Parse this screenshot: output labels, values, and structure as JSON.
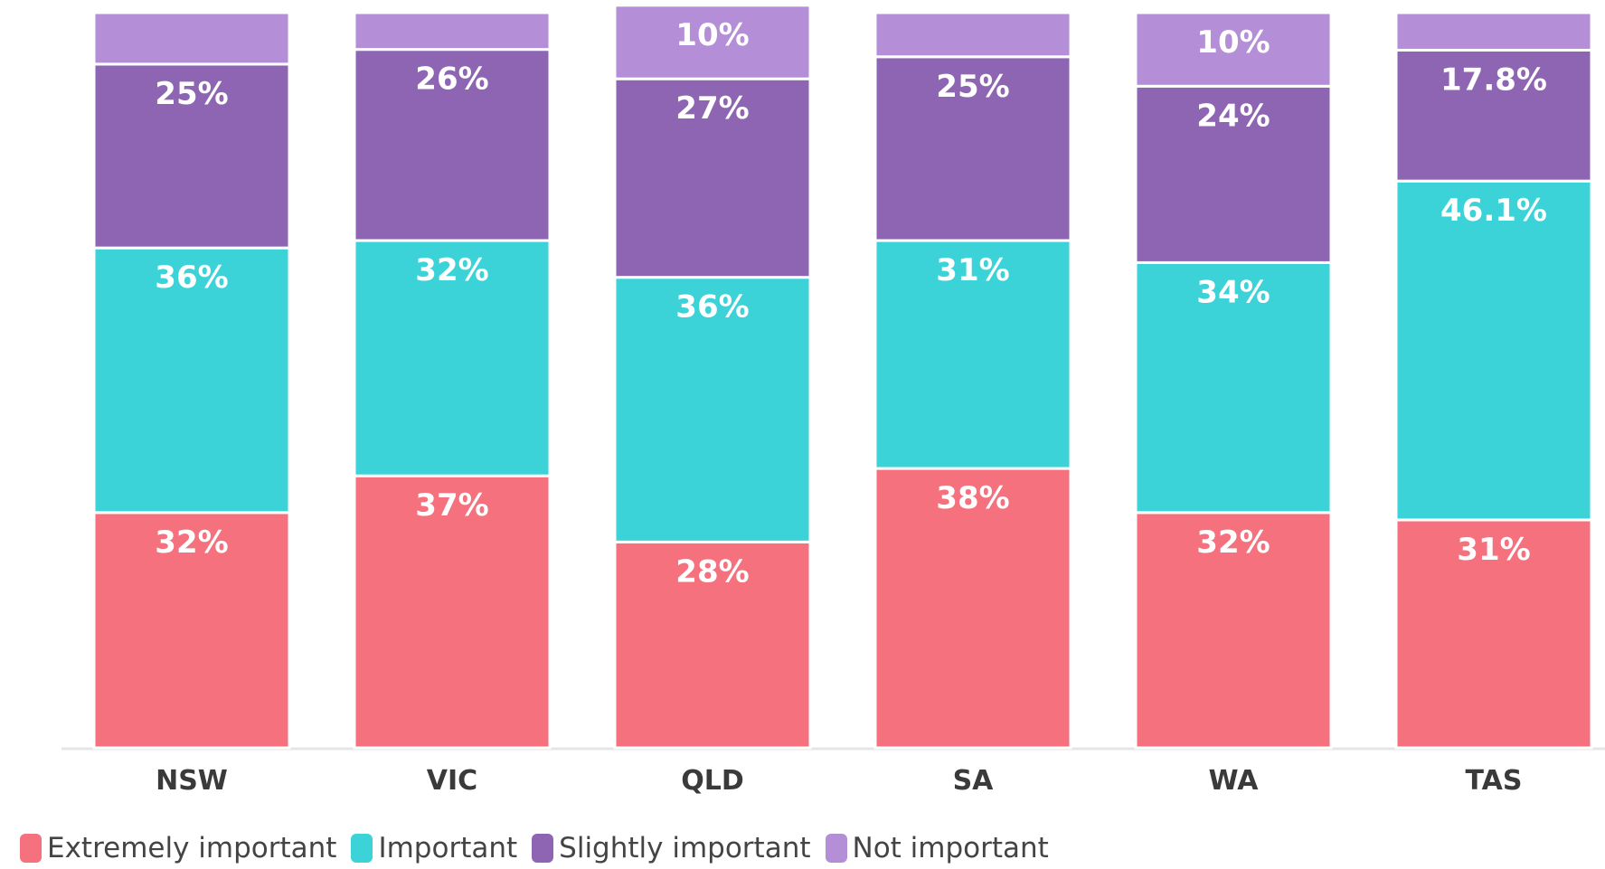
{
  "chart_data": {
    "type": "stacked_bar",
    "categories": [
      "NSW",
      "VIC",
      "QLD",
      "SA",
      "WA",
      "TAS"
    ],
    "ylim": [
      0,
      100
    ],
    "series": [
      {
        "name": "Extremely important",
        "color": "#f4717d",
        "values": [
          32,
          37,
          28,
          38,
          32,
          31
        ],
        "value_labels": [
          "32%",
          "37%",
          "28%",
          "38%",
          "32%",
          "31%"
        ]
      },
      {
        "name": "Important",
        "color": "#3bd2d8",
        "values": [
          36,
          32,
          36,
          31,
          34,
          46.1
        ],
        "value_labels": [
          "36%",
          "32%",
          "36%",
          "31%",
          "34%",
          "46.1%"
        ]
      },
      {
        "name": "Slightly important",
        "color": "#8e65b2",
        "values": [
          25,
          26,
          27,
          25,
          24,
          17.8
        ],
        "value_labels": [
          "25%",
          "26%",
          "27%",
          "25%",
          "24%",
          "17.8%"
        ]
      },
      {
        "name": "Not important",
        "color": "#b48ed6",
        "values": [
          7,
          5,
          10,
          6,
          10,
          5.1
        ],
        "value_labels": [
          null,
          null,
          "10%",
          null,
          "10%",
          null
        ]
      }
    ]
  }
}
